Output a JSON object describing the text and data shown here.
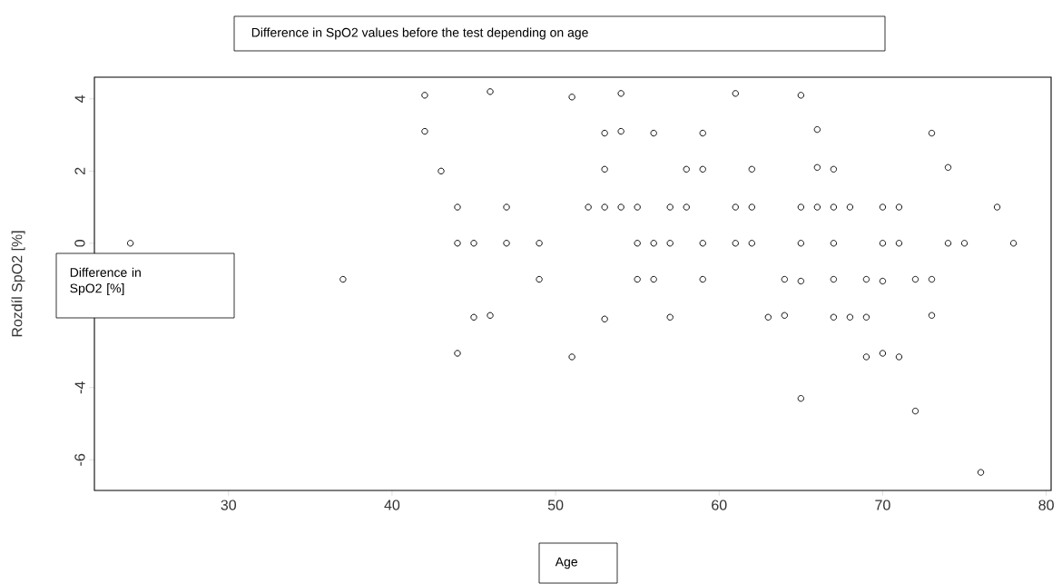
{
  "chart_data": {
    "type": "scatter",
    "title": "Difference in SpO2 values before the test depending on age",
    "xlabel": "Age",
    "ylabel": "Rozdíl SpO2 [%]",
    "annotations": [
      "Difference in SpO2 [%]"
    ],
    "xlim": [
      21.8,
      80.3
    ],
    "ylim": [
      -6.85,
      4.6
    ],
    "xticks": [
      30,
      40,
      50,
      60,
      70,
      80
    ],
    "yticks": [
      -6,
      -4,
      {
        "value": -2,
        "label": null
      },
      0,
      2,
      4
    ],
    "marker": "circle",
    "grid": false,
    "series": [
      {
        "color": "#000000",
        "x": [
          24,
          37,
          42,
          42,
          43,
          44,
          44,
          44,
          45,
          45,
          46,
          46,
          47,
          47,
          49,
          49,
          51,
          51,
          52,
          53,
          53,
          53,
          53,
          54,
          54,
          54,
          55,
          55,
          55,
          56,
          56,
          56,
          57,
          57,
          57,
          58,
          58,
          59,
          59,
          59,
          59,
          61,
          61,
          61,
          62,
          62,
          62,
          63,
          64,
          64,
          65,
          65,
          65,
          65,
          65,
          66,
          66,
          66,
          67,
          67,
          67,
          67,
          67,
          68,
          68,
          69,
          69,
          69,
          70,
          70,
          70,
          70,
          71,
          71,
          71,
          72,
          72,
          73,
          73,
          73,
          74,
          74,
          75,
          77,
          78,
          76
        ],
        "values": [
          0,
          -1.0,
          4.1,
          3.1,
          2.0,
          1.0,
          0,
          -3.05,
          0,
          -2.05,
          4.2,
          -2.0,
          1.0,
          0,
          0,
          -1.0,
          4.05,
          -3.15,
          1.0,
          3.05,
          2.05,
          1.0,
          -2.1,
          4.15,
          3.1,
          1.0,
          1.0,
          0,
          -1.0,
          3.05,
          0,
          -1.0,
          1.0,
          0,
          -2.05,
          2.05,
          1.0,
          3.05,
          2.05,
          0,
          -1.0,
          4.15,
          1.0,
          0,
          2.05,
          1.0,
          0,
          -2.05,
          -1.0,
          -2.0,
          4.1,
          1.0,
          0,
          -1.05,
          -4.3,
          3.15,
          2.1,
          1.0,
          2.05,
          1.0,
          0,
          -1.0,
          -2.05,
          1.0,
          -2.05,
          -1.0,
          -2.05,
          -3.15,
          1.0,
          0,
          -1.05,
          -3.05,
          1.0,
          0,
          -3.15,
          -1.0,
          -4.65,
          3.05,
          -1.0,
          -2.0,
          2.1,
          0,
          0,
          1.0,
          0,
          -6.35
        ]
      }
    ]
  }
}
